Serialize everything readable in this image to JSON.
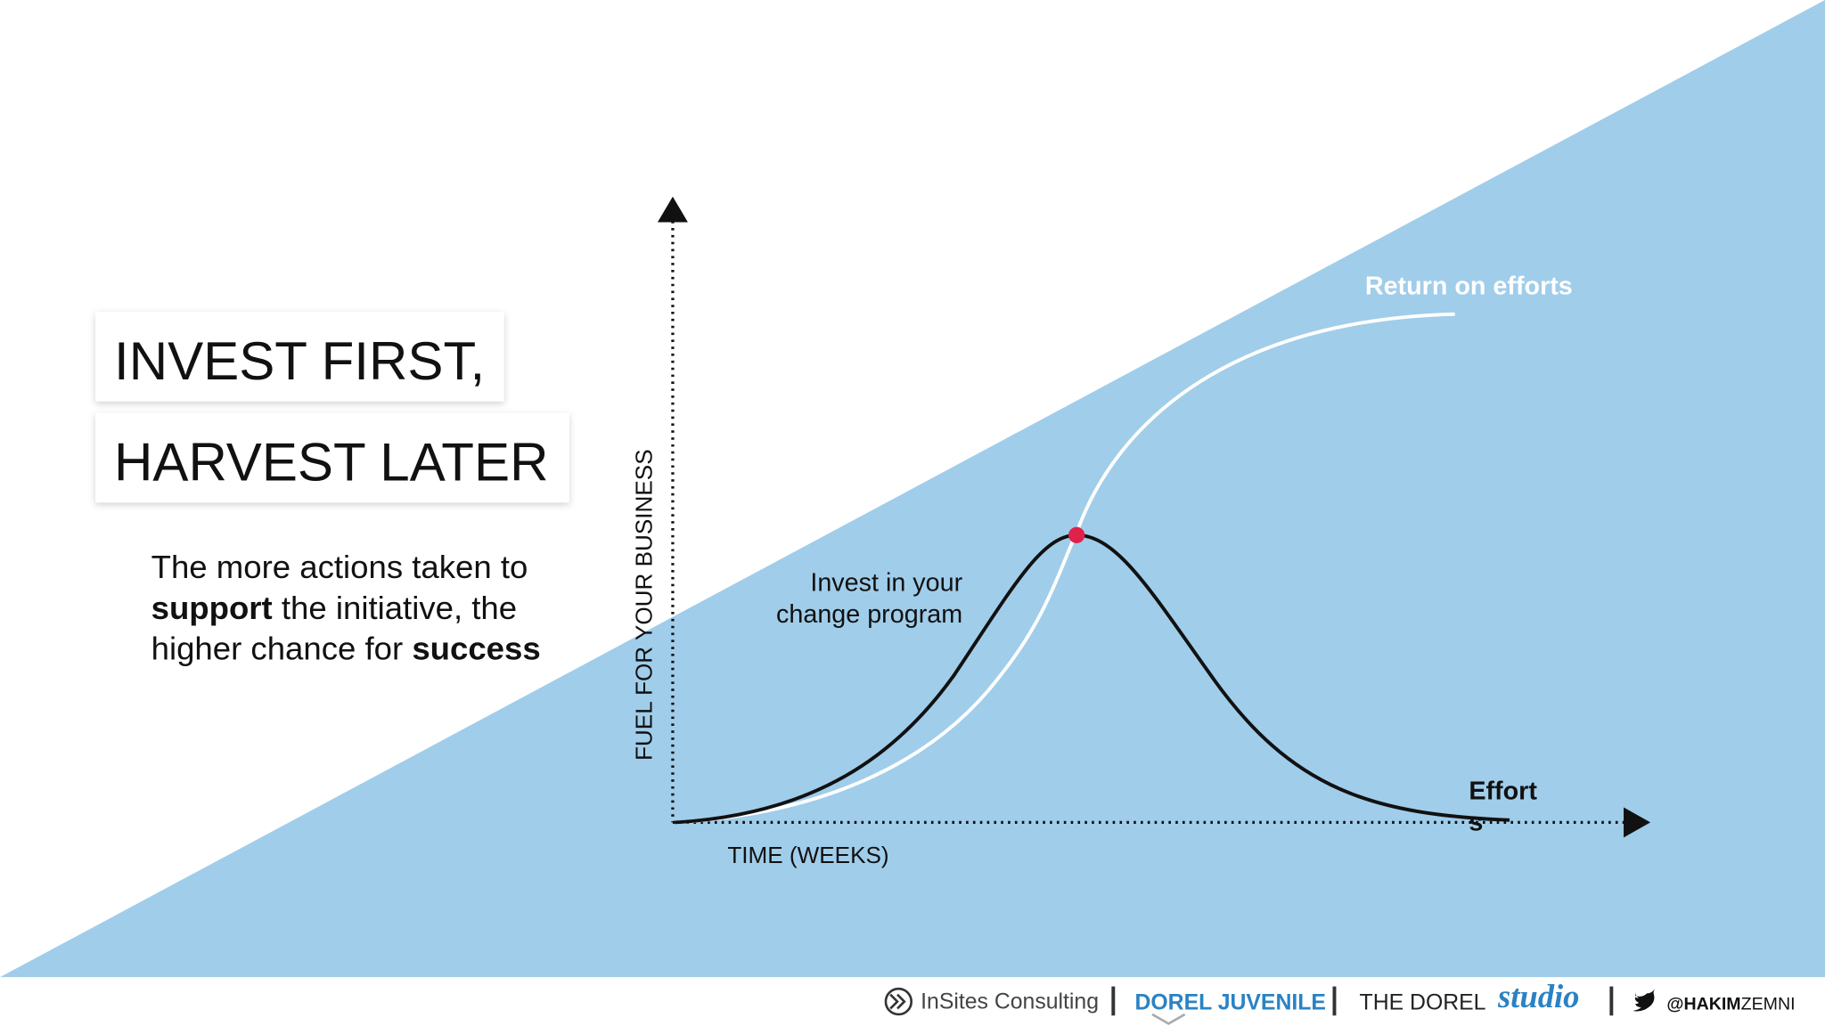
{
  "title": {
    "line1": "INVEST FIRST,",
    "line2": "HARVEST LATER"
  },
  "body": [
    [
      "The more actions taken to"
    ],
    [
      "support",
      " the initiative, the"
    ],
    [
      "higher chance for ",
      "success"
    ]
  ],
  "diagram": {
    "y_axis_label": "FUEL FOR YOUR BUSINESS",
    "x_axis_label": "TIME (WEEKS)",
    "invest_label": [
      "Invest in your",
      "change program"
    ],
    "return_label": "Return on efforts",
    "efforts_label": [
      "Effort",
      "s"
    ]
  },
  "footer": {
    "insites": "InSites Consulting",
    "dorel_juvenile": "DOREL JUVENILE",
    "the_dorel": "THE DOREL",
    "studio": "studio",
    "handle": [
      "@",
      "HAKIM",
      "ZEMNI"
    ]
  }
}
